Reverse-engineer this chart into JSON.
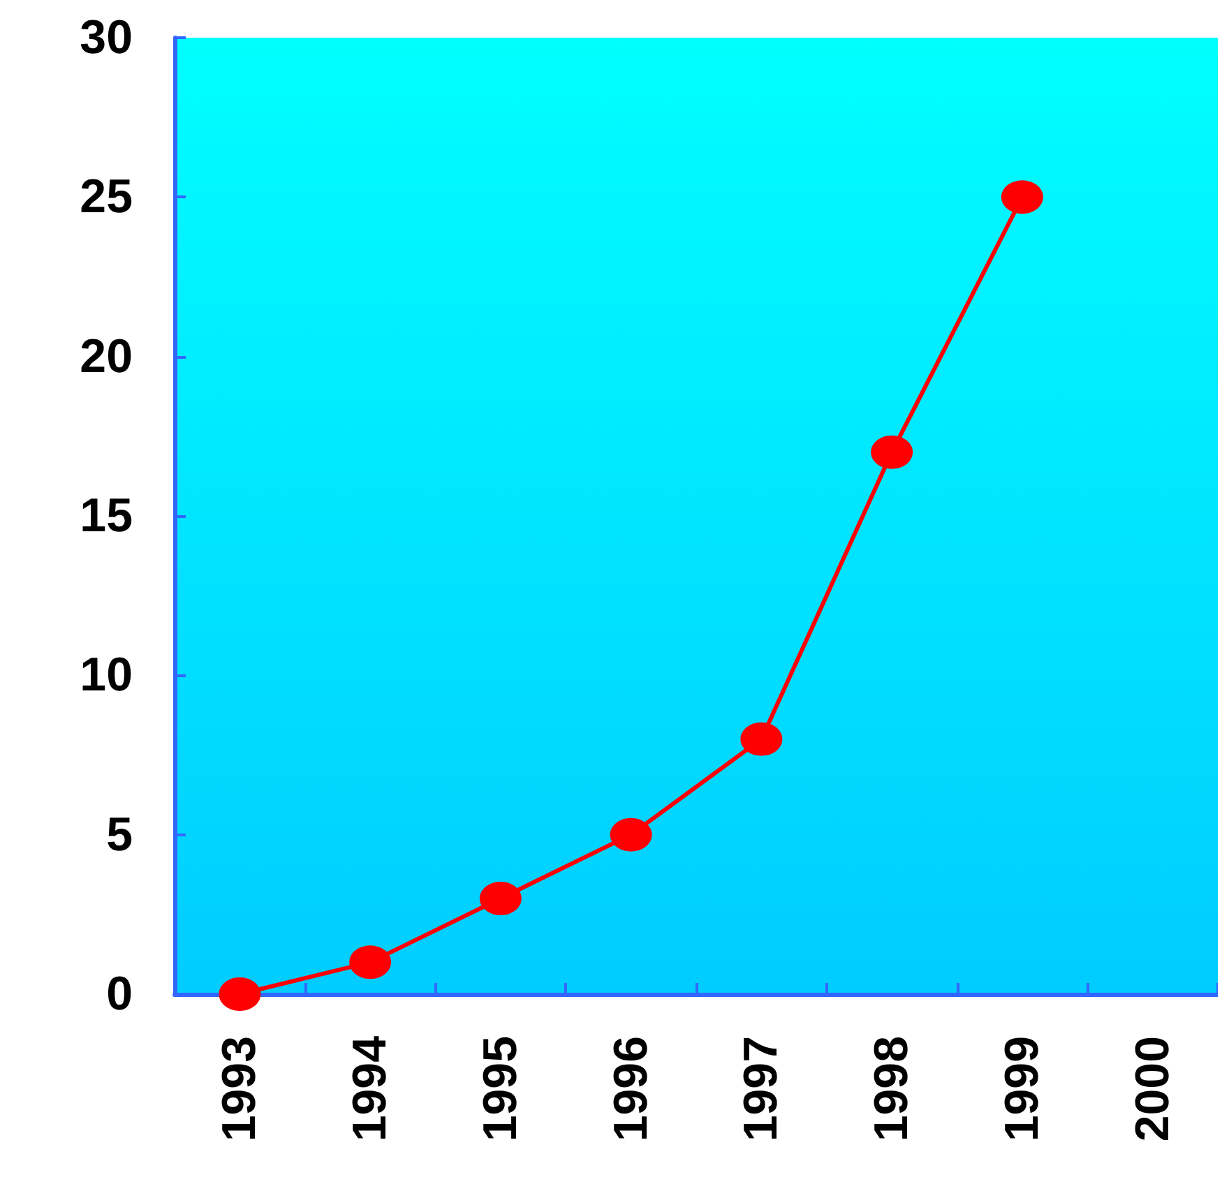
{
  "chart_data": {
    "type": "line",
    "categories": [
      "1993",
      "1994",
      "1995",
      "1996",
      "1997",
      "1998",
      "1999",
      "2000"
    ],
    "series": [
      {
        "color": "#ff0000",
        "values": [
          0,
          1,
          3,
          5,
          8,
          17,
          25,
          null
        ]
      }
    ],
    "ylim": [
      0,
      30
    ],
    "yticks": [
      0,
      5,
      10,
      15,
      20,
      25,
      30
    ],
    "grid": false,
    "marker": "circle",
    "line_style": "solid"
  }
}
